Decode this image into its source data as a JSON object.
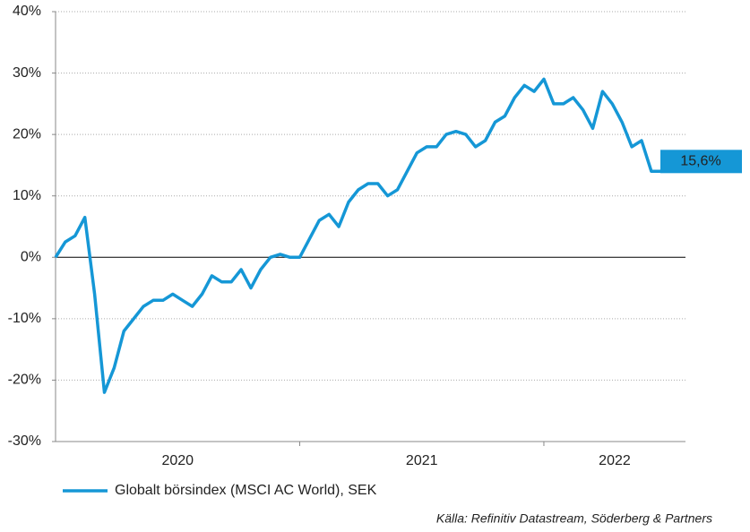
{
  "chart_data": {
    "type": "line",
    "x": [
      2020.0,
      2020.04,
      2020.08,
      2020.12,
      2020.16,
      2020.2,
      2020.24,
      2020.28,
      2020.32,
      2020.36,
      2020.4,
      2020.44,
      2020.48,
      2020.52,
      2020.56,
      2020.6,
      2020.64,
      2020.68,
      2020.72,
      2020.76,
      2020.8,
      2020.84,
      2020.88,
      2020.92,
      2020.96,
      2021.0,
      2021.04,
      2021.08,
      2021.12,
      2021.16,
      2021.2,
      2021.24,
      2021.28,
      2021.32,
      2021.36,
      2021.4,
      2021.44,
      2021.48,
      2021.52,
      2021.56,
      2021.6,
      2021.64,
      2021.68,
      2021.72,
      2021.76,
      2021.8,
      2021.84,
      2021.88,
      2021.92,
      2021.96,
      2022.0,
      2022.04,
      2022.08,
      2022.12,
      2022.16,
      2022.2,
      2022.24,
      2022.28,
      2022.32,
      2022.36,
      2022.4,
      2022.44,
      2022.48,
      2022.5
    ],
    "series": [
      {
        "name": "Globalt börsindex (MSCI AC World), SEK",
        "color": "#1597d6",
        "values": [
          0,
          2.5,
          3.5,
          6.5,
          -6,
          -22,
          -18,
          -12,
          -10,
          -8,
          -7,
          -7,
          -6,
          -7,
          -8,
          -6,
          -3,
          -4,
          -4,
          -2,
          -5,
          -2,
          0,
          0.5,
          0,
          0,
          3,
          6,
          7,
          5,
          9,
          11,
          12,
          12,
          10,
          11,
          14,
          17,
          18,
          18,
          20,
          20.5,
          20,
          18,
          19,
          22,
          23,
          26,
          28,
          27,
          29,
          25,
          25,
          26,
          24,
          21,
          27,
          25,
          22,
          18,
          19,
          14,
          14,
          15.6
        ]
      }
    ],
    "annotation": "15,6%",
    "year_labels": [
      "2020",
      "2021",
      "2022"
    ],
    "xlim": [
      2020,
      2022.58
    ],
    "xticks": [
      2021,
      2022
    ],
    "ylim": [
      -30,
      40
    ],
    "yticks": [
      {
        "value": -30,
        "label": "-30%"
      },
      {
        "value": -20,
        "label": "-20%"
      },
      {
        "value": -10,
        "label": "-10%"
      },
      {
        "value": 0,
        "label": "0%"
      },
      {
        "value": 10,
        "label": "10%"
      },
      {
        "value": 20,
        "label": "20%"
      },
      {
        "value": 30,
        "label": "30%"
      },
      {
        "value": 40,
        "label": "40%"
      }
    ],
    "grid": true,
    "source": "Källa: Refinitiv Datastream, Söderberg & Partners"
  }
}
